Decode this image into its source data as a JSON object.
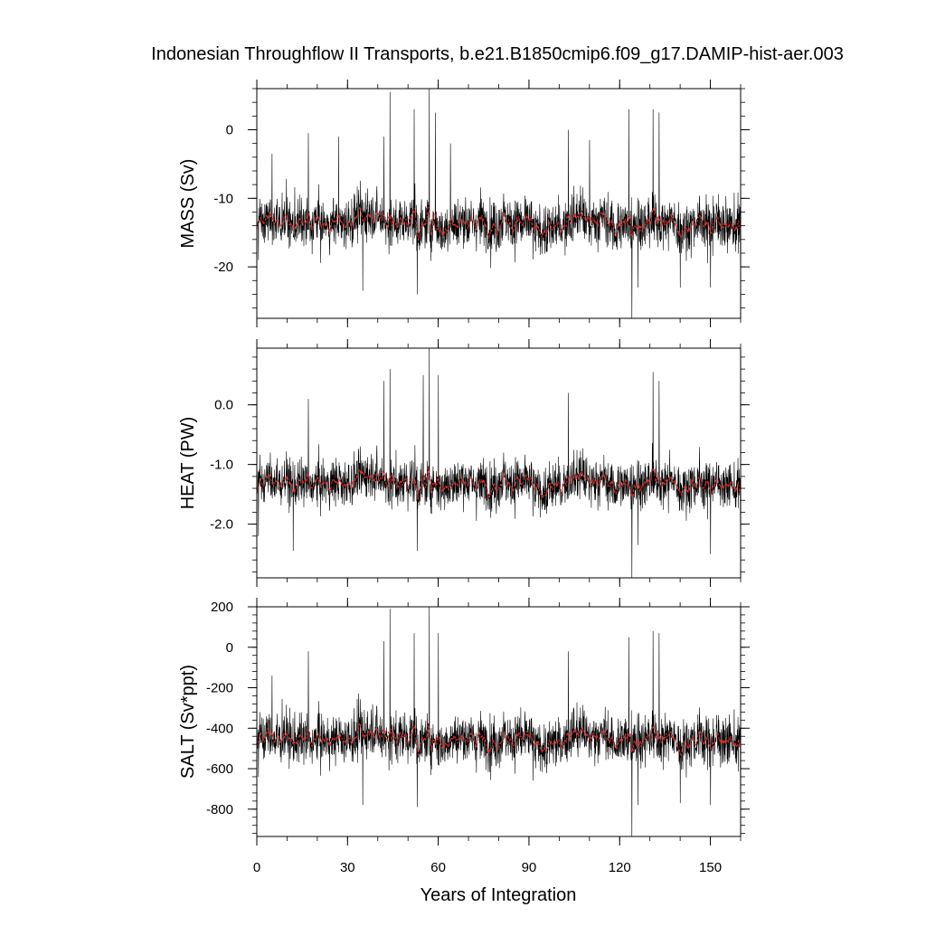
{
  "chart_data": {
    "type": "line",
    "title": "Indonesian Throughflow II Transports, b.e21.B1850cmip6.f09_g17.DAMIP-hist-aer.003",
    "xlabel": "Years of Integration",
    "xlim": [
      0,
      160
    ],
    "x_ticks": [
      0,
      30,
      60,
      90,
      120,
      150
    ],
    "x_tick_labels": [
      "0",
      "30",
      "60",
      "90",
      "120",
      "150"
    ],
    "series_colors": {
      "monthly": "#000000",
      "smoothed": "#e03030"
    },
    "panels": [
      {
        "name": "mass",
        "ylabel": "MASS (Sv)",
        "ylim": [
          -27.5,
          6.0
        ],
        "y_ticks": [
          0,
          -10,
          -20
        ],
        "y_tick_labels": [
          "0",
          "-10",
          "-20"
        ],
        "mean": -13.5,
        "noise": 3.3,
        "spikes": [
          {
            "x": 0.5,
            "y": -19.0
          },
          {
            "x": 5.0,
            "y": -3.5
          },
          {
            "x": 17.0,
            "y": -0.5
          },
          {
            "x": 27.0,
            "y": -1.0
          },
          {
            "x": 35.0,
            "y": -23.5
          },
          {
            "x": 42.0,
            "y": -1.0
          },
          {
            "x": 44.0,
            "y": 5.5
          },
          {
            "x": 52.0,
            "y": 3.0
          },
          {
            "x": 53.0,
            "y": -24.0
          },
          {
            "x": 57.0,
            "y": 6.0
          },
          {
            "x": 59.0,
            "y": 2.5
          },
          {
            "x": 64.0,
            "y": -2.0
          },
          {
            "x": 103.0,
            "y": 0.0
          },
          {
            "x": 110.0,
            "y": -1.5
          },
          {
            "x": 123.0,
            "y": 3.0
          },
          {
            "x": 124.0,
            "y": -27.5
          },
          {
            "x": 126.0,
            "y": -23.0
          },
          {
            "x": 131.0,
            "y": 3.0
          },
          {
            "x": 133.0,
            "y": 2.5
          },
          {
            "x": 140.0,
            "y": -23.0
          },
          {
            "x": 150.0,
            "y": -23.0
          },
          {
            "x": 160.0,
            "y": -21.0
          }
        ]
      },
      {
        "name": "heat",
        "ylabel": "HEAT (PW)",
        "ylim": [
          -2.9,
          0.95
        ],
        "y_ticks": [
          0.0,
          -1.0,
          -2.0
        ],
        "y_tick_labels": [
          "0.0",
          "-1.0",
          "-2.0"
        ],
        "mean": -1.3,
        "noise": 0.36,
        "spikes": [
          {
            "x": 0.5,
            "y": -2.2
          },
          {
            "x": 12.0,
            "y": -2.45
          },
          {
            "x": 17.0,
            "y": 0.1
          },
          {
            "x": 42.0,
            "y": 0.4
          },
          {
            "x": 44.0,
            "y": 0.6
          },
          {
            "x": 53.0,
            "y": -2.45
          },
          {
            "x": 55.0,
            "y": 0.5
          },
          {
            "x": 57.0,
            "y": 0.95
          },
          {
            "x": 60.0,
            "y": 0.5
          },
          {
            "x": 103.0,
            "y": 0.2
          },
          {
            "x": 124.0,
            "y": -2.9
          },
          {
            "x": 126.0,
            "y": -2.35
          },
          {
            "x": 131.0,
            "y": 0.55
          },
          {
            "x": 133.0,
            "y": 0.4
          },
          {
            "x": 150.0,
            "y": -2.5
          },
          {
            "x": 160.0,
            "y": -2.35
          }
        ]
      },
      {
        "name": "salt",
        "ylabel": "SALT (Sv*ppt)",
        "ylim": [
          -935,
          200
        ],
        "y_ticks": [
          200,
          0,
          -200,
          -400,
          -600,
          -800
        ],
        "y_tick_labels": [
          "200",
          "0",
          "-200",
          "-400",
          "-600",
          "-800"
        ],
        "mean": -450,
        "noise": 110,
        "spikes": [
          {
            "x": 0.5,
            "y": -640
          },
          {
            "x": 5.0,
            "y": -140
          },
          {
            "x": 17.0,
            "y": -20
          },
          {
            "x": 35.0,
            "y": -780
          },
          {
            "x": 42.0,
            "y": 30
          },
          {
            "x": 44.0,
            "y": 190
          },
          {
            "x": 52.0,
            "y": 70
          },
          {
            "x": 53.0,
            "y": -790
          },
          {
            "x": 57.0,
            "y": 200
          },
          {
            "x": 60.0,
            "y": 70
          },
          {
            "x": 103.0,
            "y": -20
          },
          {
            "x": 123.0,
            "y": 50
          },
          {
            "x": 124.0,
            "y": -935
          },
          {
            "x": 126.0,
            "y": -780
          },
          {
            "x": 131.0,
            "y": 80
          },
          {
            "x": 133.0,
            "y": 70
          },
          {
            "x": 140.0,
            "y": -770
          },
          {
            "x": 150.0,
            "y": -780
          },
          {
            "x": 160.0,
            "y": -760
          }
        ]
      }
    ]
  }
}
